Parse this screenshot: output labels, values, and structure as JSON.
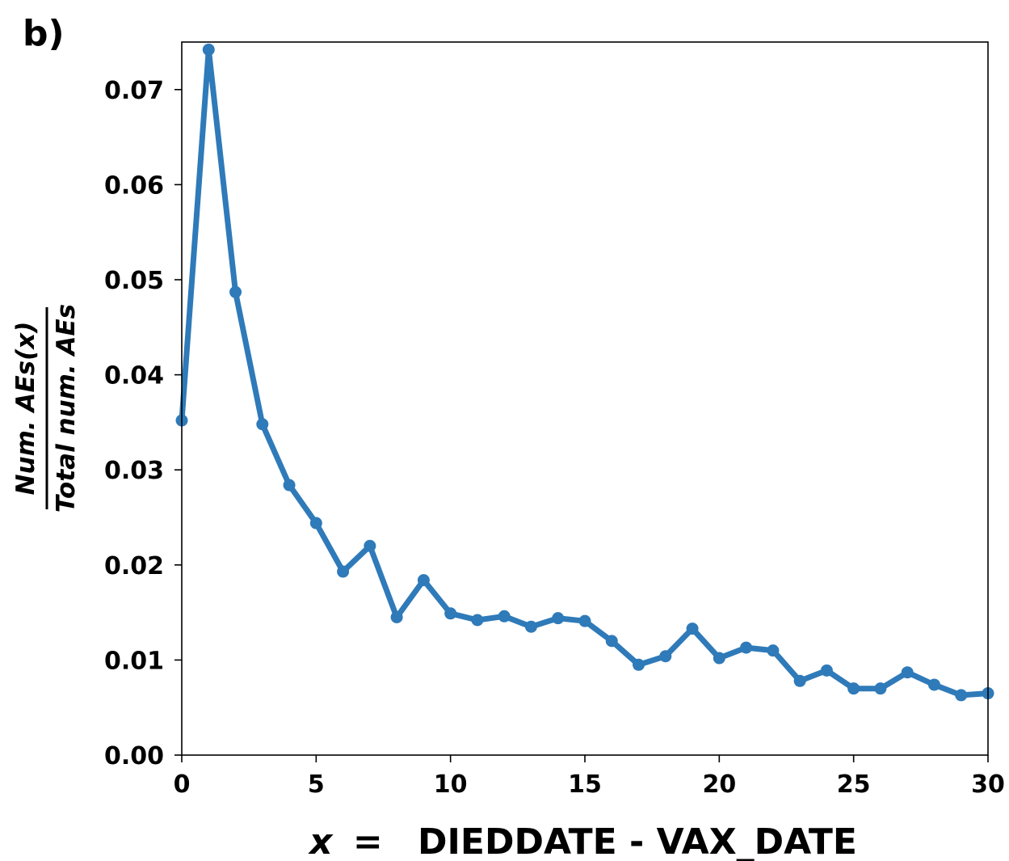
{
  "panel_label": "b)",
  "chart_data": {
    "type": "line",
    "xlabel_var": "x",
    "xlabel_eq": "=",
    "xlabel_text": "DIEDDATE - VAX_DATE",
    "ylabel_numerator": "Num. AEs(x)",
    "ylabel_denominator": "Total num. AEs",
    "xlim": [
      0,
      30
    ],
    "ylim": [
      0,
      0.075
    ],
    "xticks": [
      0,
      5,
      10,
      15,
      20,
      25,
      30
    ],
    "yticks": [
      "0.00",
      "0.01",
      "0.02",
      "0.03",
      "0.04",
      "0.05",
      "0.06",
      "0.07"
    ],
    "grid": false,
    "color": "#2f7ab9",
    "series": [
      {
        "x": [
          0,
          1,
          2,
          3,
          4,
          5,
          6,
          7,
          8,
          9,
          10,
          11,
          12,
          13,
          14,
          15,
          16,
          17,
          18,
          19,
          20,
          21,
          22,
          23,
          24,
          25,
          26,
          27,
          28,
          29,
          30
        ],
        "y": [
          0.0352,
          0.0742,
          0.0487,
          0.0348,
          0.0284,
          0.0244,
          0.0193,
          0.022,
          0.0145,
          0.0184,
          0.0149,
          0.0142,
          0.0146,
          0.0135,
          0.0144,
          0.0141,
          0.012,
          0.0095,
          0.0104,
          0.0133,
          0.0102,
          0.0113,
          0.011,
          0.0078,
          0.0089,
          0.007,
          0.007,
          0.0087,
          0.0074,
          0.0063,
          0.0065
        ]
      }
    ]
  }
}
